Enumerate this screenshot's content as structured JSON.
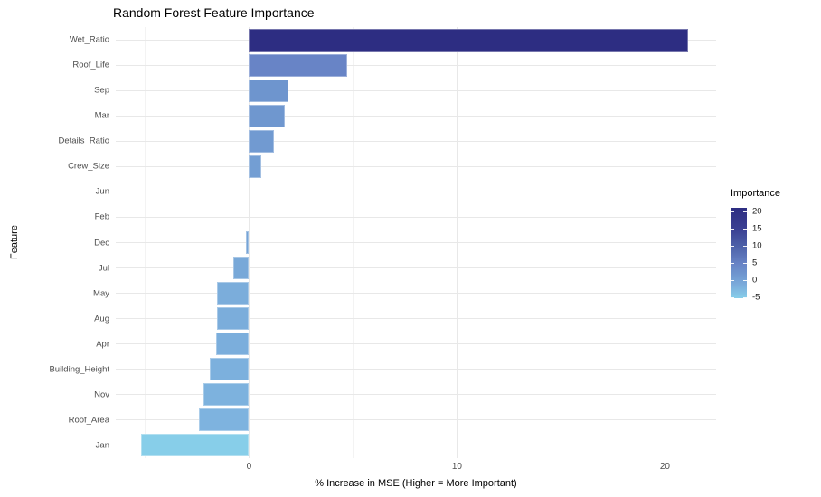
{
  "chart_data": {
    "type": "bar",
    "orientation": "horizontal",
    "title": "Random Forest Feature Importance",
    "xlabel": "% Increase in MSE (Higher = More Important)",
    "ylabel": "Feature",
    "categories": [
      "Wet_Ratio",
      "Roof_Life",
      "Sep",
      "Mar",
      "Details_Ratio",
      "Crew_Size",
      "Jun",
      "Feb",
      "Dec",
      "Jul",
      "May",
      "Aug",
      "Apr",
      "Building_Height",
      "Nov",
      "Roof_Area",
      "Jan"
    ],
    "values": [
      21.1,
      4.7,
      1.9,
      1.7,
      1.2,
      0.6,
      0,
      0,
      -0.13,
      -0.77,
      -1.55,
      -1.55,
      -1.6,
      -1.9,
      -2.2,
      -2.4,
      -5.2
    ],
    "bar_colors": [
      "#2D2D82",
      "#6884C6",
      "#6E95CE",
      "#6F97CF",
      "#719AD1",
      "#739ED3",
      "#76A3D5",
      "#76A3D5",
      "#76A4D6",
      "#78A8D8",
      "#7BADDB",
      "#7BADDB",
      "#7BAEDC",
      "#7CB0DD",
      "#7DB2DE",
      "#7EB3DF",
      "#87CEE9"
    ],
    "xlim": [
      -6.41,
      22.46
    ],
    "x_major_ticks": [
      0,
      10,
      20
    ],
    "x_minor_ticks": [
      -5,
      5,
      15
    ],
    "x_tick_labels": [
      "0",
      "10",
      "20"
    ],
    "grid": true,
    "legend_position": "right",
    "legend": {
      "title": "Importance",
      "tick_labels": [
        "20",
        "15",
        "10",
        "5",
        "0",
        "-5"
      ],
      "tick_values": [
        20,
        15,
        10,
        5,
        0,
        -5
      ],
      "domain_max": 21.1,
      "domain_min": -5.2,
      "gradient_stops": [
        {
          "pos": 0,
          "color": "#2D2D82"
        },
        {
          "pos": 0.232,
          "color": "#3A3F92"
        },
        {
          "pos": 0.422,
          "color": "#4C60A8"
        },
        {
          "pos": 0.624,
          "color": "#6884C6"
        },
        {
          "pos": 0.73,
          "color": "#6E95CE"
        },
        {
          "pos": 0.86,
          "color": "#7BADDB"
        },
        {
          "pos": 1,
          "color": "#87CEE9"
        }
      ]
    },
    "colors": {
      "background": "#FFFFFF",
      "grid_major": "#E8E8E8",
      "grid_minor": "#F3F3F3",
      "tick_label_color": "#4D4D4D",
      "text_color": "#000000"
    }
  }
}
